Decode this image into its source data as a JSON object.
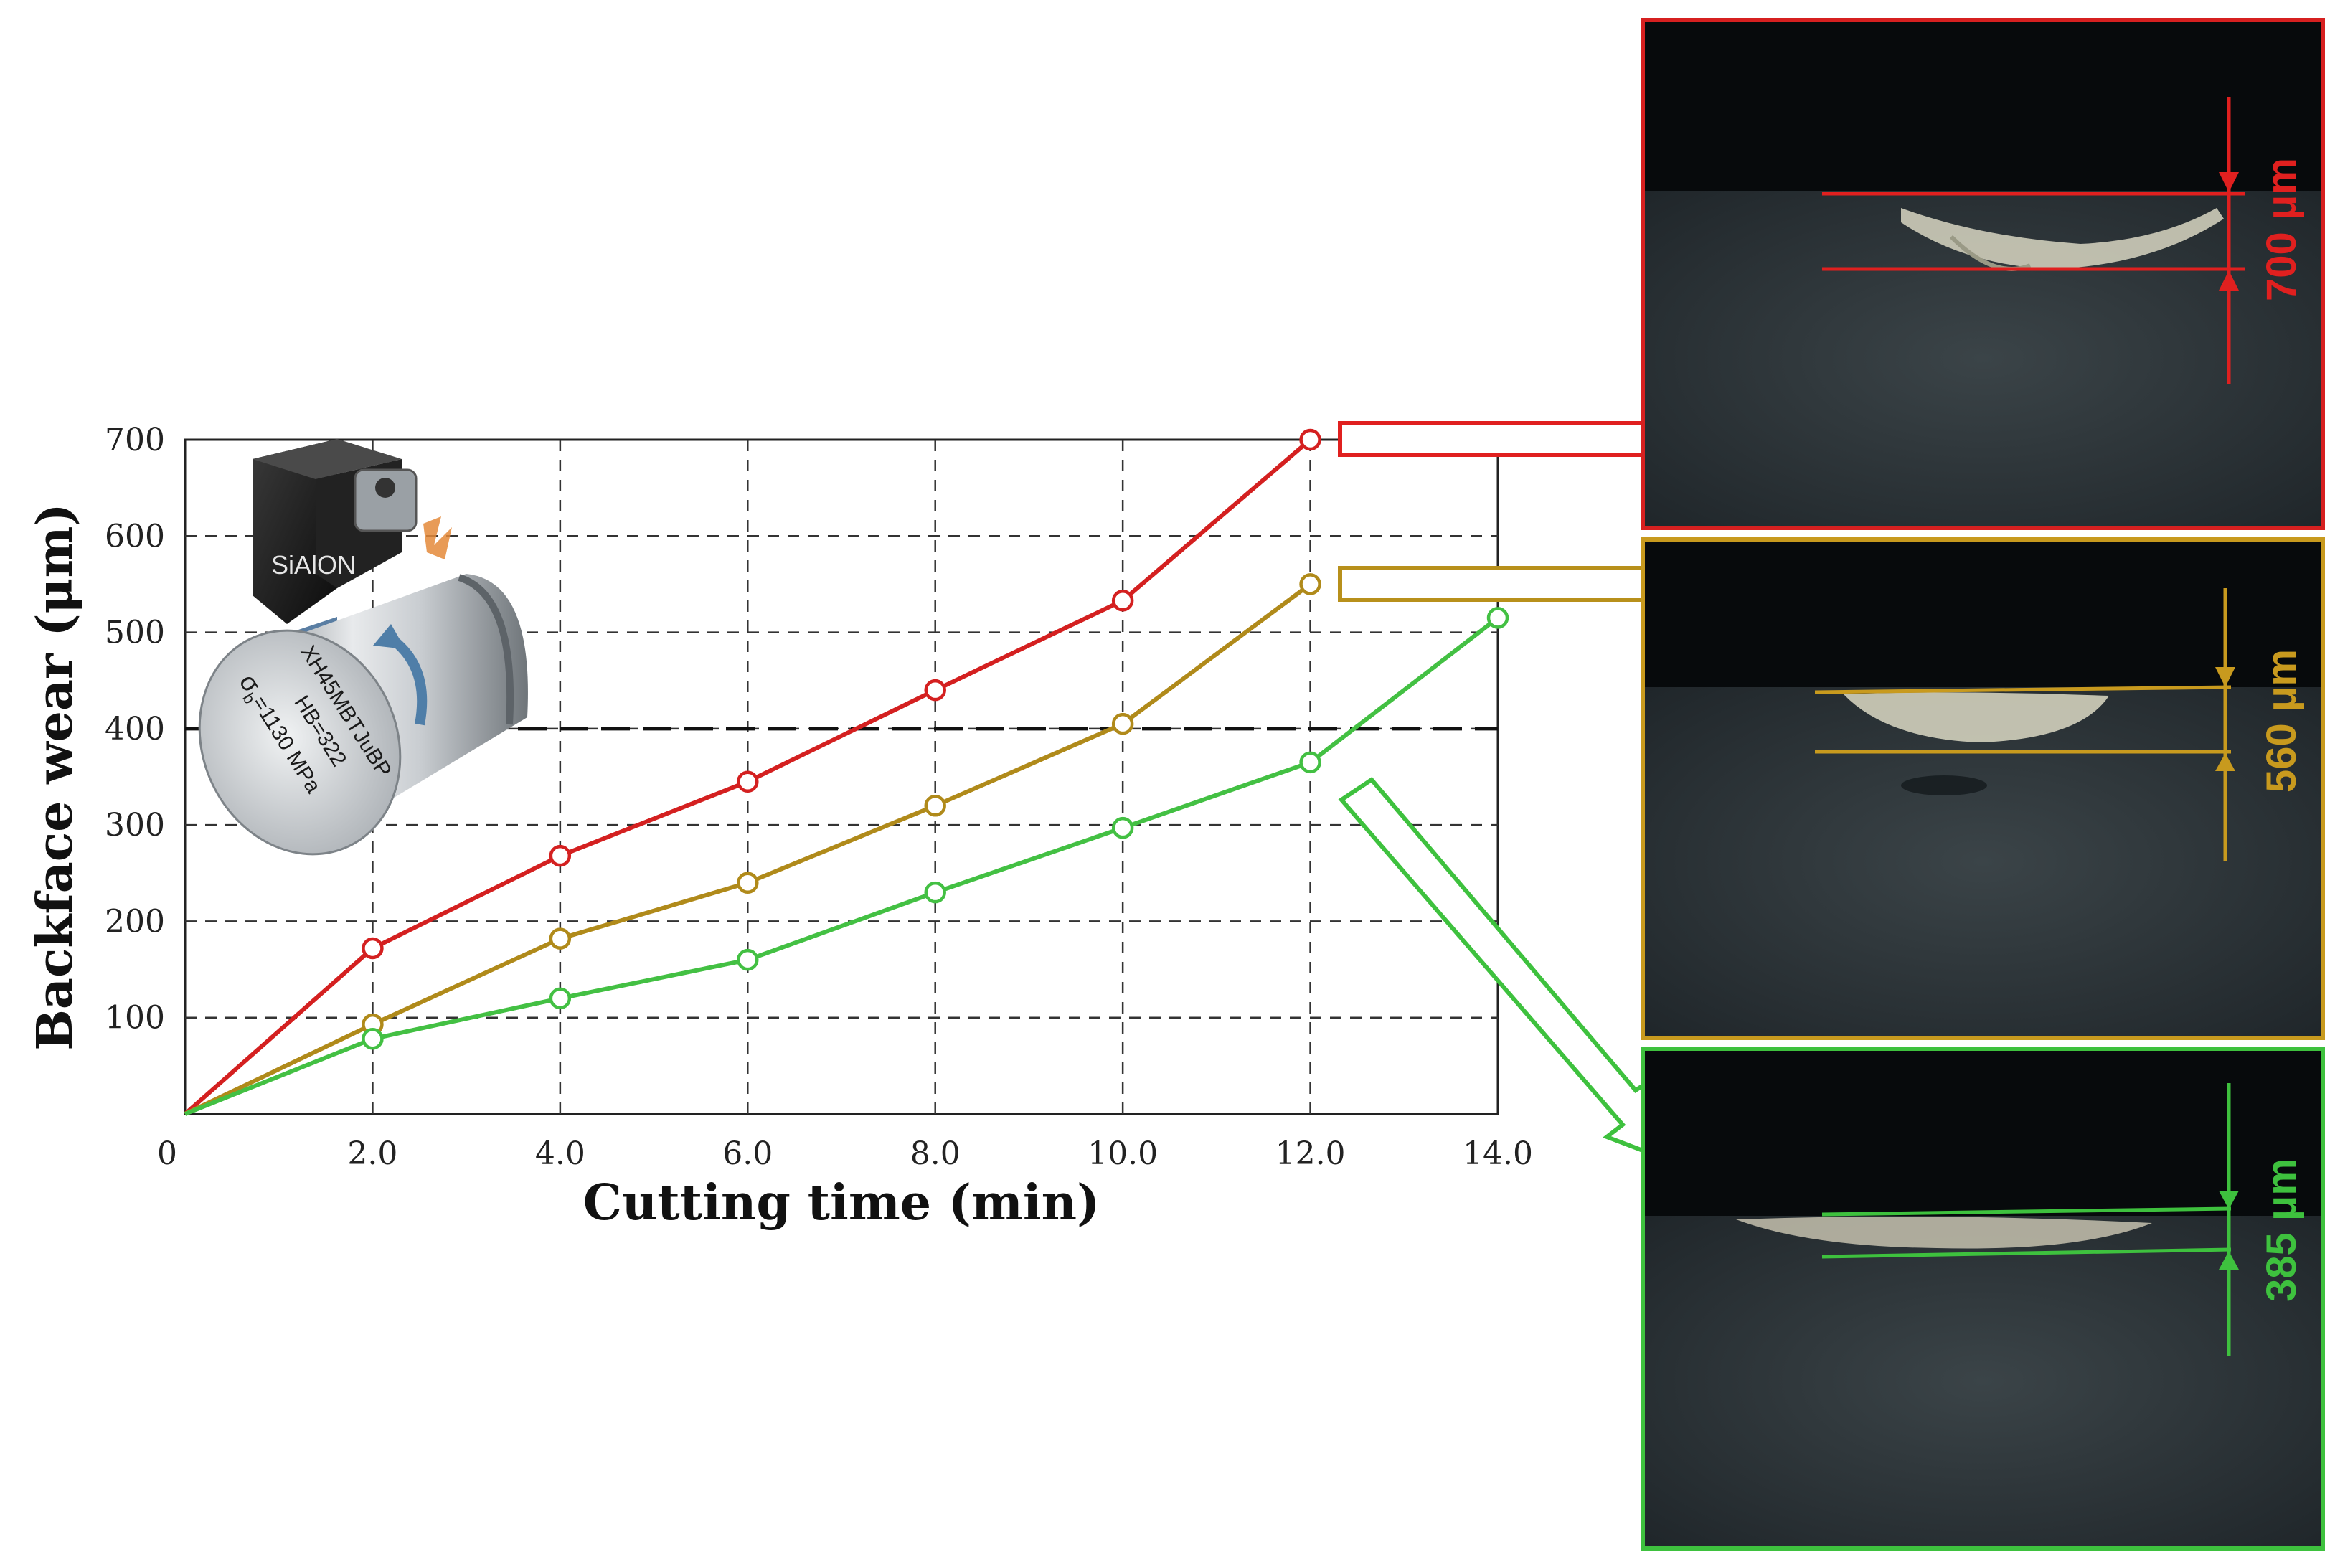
{
  "chart_data": {
    "type": "line",
    "xlabel": "Cutting time (min)",
    "ylabel": "Backface wear (μm)",
    "xlim": [
      0,
      14
    ],
    "ylim": [
      0,
      700
    ],
    "x_tick_labels": [
      "0",
      "2.0",
      "4.0",
      "6.0",
      "8.0",
      "10.0",
      "12.0",
      "14.0"
    ],
    "y_tick_labels": [
      "100",
      "200",
      "300",
      "400",
      "500",
      "600",
      "700"
    ],
    "x_ticks": [
      0,
      2,
      4,
      6,
      8,
      10,
      12,
      14
    ],
    "y_ticks": [
      100,
      200,
      300,
      400,
      500,
      600,
      700
    ],
    "grid": true,
    "threshold_line": 400,
    "series": [
      {
        "color": "#d42020",
        "x": [
          0,
          2,
          4,
          6,
          8,
          10,
          12
        ],
        "y": [
          0,
          172,
          268,
          345,
          440,
          533,
          700
        ]
      },
      {
        "color": "#b08a1a",
        "x": [
          0,
          2,
          4,
          6,
          8,
          10,
          12
        ],
        "y": [
          0,
          93,
          182,
          240,
          320,
          405,
          550
        ]
      },
      {
        "color": "#43c043",
        "x": [
          0,
          2,
          4,
          6,
          8,
          10,
          12,
          14
        ],
        "y": [
          0,
          78,
          120,
          160,
          230,
          297,
          365,
          515
        ]
      }
    ]
  },
  "inset": {
    "tool_label": "SiAlON",
    "workpiece_line1": "XH45MBTJuBP",
    "workpiece_line2": "HB=322",
    "workpiece_line3": "σ",
    "workpiece_line3_sub": "b",
    "workpiece_line3_rest": "=1130 MPa"
  },
  "micrographs": [
    {
      "label": "700 μm",
      "color": "#e0201f"
    },
    {
      "label": "560 μm",
      "color": "#c89a1e"
    },
    {
      "label": "385 μm",
      "color": "#3ec13e"
    }
  ]
}
